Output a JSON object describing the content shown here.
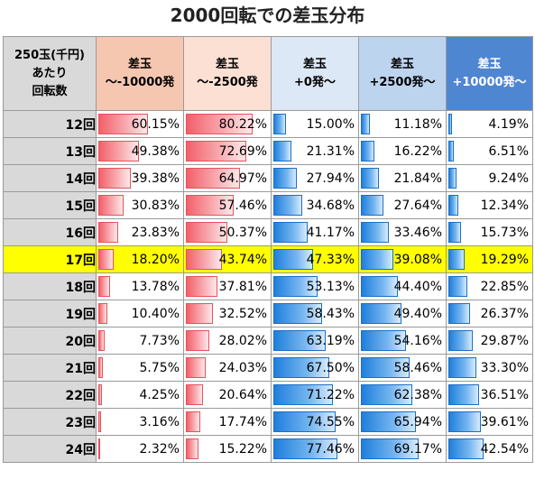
{
  "title": "2000回転での差玉分布",
  "header": {
    "rotation_lines": [
      "250玉(千円)",
      "あたり",
      "回転数"
    ],
    "columns": [
      {
        "line1": "差玉",
        "line2": "～-10000発"
      },
      {
        "line1": "差玉",
        "line2": "～-2500発"
      },
      {
        "line1": "差玉",
        "line2": "+0発～"
      },
      {
        "line1": "差玉",
        "line2": "+2500発～"
      },
      {
        "line1": "差玉",
        "line2": "+10000発～"
      }
    ]
  },
  "colors": {
    "negative_bar": "#f2606a",
    "positive_bar": "#1f7fdc",
    "highlight_row": "#ffff00"
  },
  "highlight_row_label": "17回",
  "rows": [
    {
      "label": "12回",
      "values": [
        60.15,
        80.22,
        15.0,
        11.18,
        4.19
      ],
      "text": [
        "60.15%",
        "80.22%",
        "15.00%",
        "11.18%",
        "4.19%"
      ]
    },
    {
      "label": "13回",
      "values": [
        49.38,
        72.69,
        21.31,
        16.22,
        6.51
      ],
      "text": [
        "49.38%",
        "72.69%",
        "21.31%",
        "16.22%",
        "6.51%"
      ]
    },
    {
      "label": "14回",
      "values": [
        39.38,
        64.97,
        27.94,
        21.84,
        9.24
      ],
      "text": [
        "39.38%",
        "64.97%",
        "27.94%",
        "21.84%",
        "9.24%"
      ]
    },
    {
      "label": "15回",
      "values": [
        30.83,
        57.46,
        34.68,
        27.64,
        12.34
      ],
      "text": [
        "30.83%",
        "57.46%",
        "34.68%",
        "27.64%",
        "12.34%"
      ]
    },
    {
      "label": "16回",
      "values": [
        23.83,
        50.37,
        41.17,
        33.46,
        15.73
      ],
      "text": [
        "23.83%",
        "50.37%",
        "41.17%",
        "33.46%",
        "15.73%"
      ]
    },
    {
      "label": "17回",
      "values": [
        18.2,
        43.74,
        47.33,
        39.08,
        19.29
      ],
      "text": [
        "18.20%",
        "43.74%",
        "47.33%",
        "39.08%",
        "19.29%"
      ]
    },
    {
      "label": "18回",
      "values": [
        13.78,
        37.81,
        53.13,
        44.4,
        22.85
      ],
      "text": [
        "13.78%",
        "37.81%",
        "53.13%",
        "44.40%",
        "22.85%"
      ]
    },
    {
      "label": "19回",
      "values": [
        10.4,
        32.52,
        58.43,
        49.4,
        26.37
      ],
      "text": [
        "10.40%",
        "32.52%",
        "58.43%",
        "49.40%",
        "26.37%"
      ]
    },
    {
      "label": "20回",
      "values": [
        7.73,
        28.02,
        63.19,
        54.16,
        29.87
      ],
      "text": [
        "7.73%",
        "28.02%",
        "63.19%",
        "54.16%",
        "29.87%"
      ]
    },
    {
      "label": "21回",
      "values": [
        5.75,
        24.03,
        67.5,
        58.46,
        33.3
      ],
      "text": [
        "5.75%",
        "24.03%",
        "67.50%",
        "58.46%",
        "33.30%"
      ]
    },
    {
      "label": "22回",
      "values": [
        4.25,
        20.64,
        71.22,
        62.38,
        36.51
      ],
      "text": [
        "4.25%",
        "20.64%",
        "71.22%",
        "62.38%",
        "36.51%"
      ]
    },
    {
      "label": "23回",
      "values": [
        3.16,
        17.74,
        74.55,
        65.94,
        39.61
      ],
      "text": [
        "3.16%",
        "17.74%",
        "74.55%",
        "65.94%",
        "39.61%"
      ]
    },
    {
      "label": "24回",
      "values": [
        2.32,
        15.22,
        77.46,
        69.17,
        42.54
      ],
      "text": [
        "2.32%",
        "15.22%",
        "77.46%",
        "69.17%",
        "42.54%"
      ]
    }
  ]
}
